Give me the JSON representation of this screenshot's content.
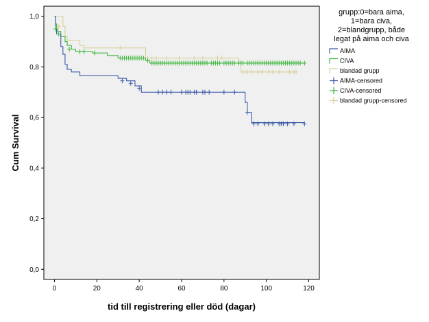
{
  "chart_data": {
    "type": "line",
    "subtype": "kaplan-meier",
    "xlabel": "tid till registrering eller död (dagar)",
    "ylabel": "Cum Survival",
    "xlim": [
      -5,
      125
    ],
    "ylim": [
      -0.04,
      1.04
    ],
    "xticks": [
      0,
      20,
      40,
      60,
      80,
      100,
      120
    ],
    "xtick_labels": [
      "0",
      "20",
      "40",
      "60",
      "80",
      "100",
      "120"
    ],
    "yticks": [
      0.0,
      0.2,
      0.4,
      0.6,
      0.8,
      1.0
    ],
    "ytick_labels": [
      "0,0",
      "0,2",
      "0,4",
      "0,6",
      "0,8",
      "1,0"
    ],
    "grid": false,
    "background": "#f0f0f0",
    "legend_position": "right",
    "legend_title": [
      "grupp:0=bara aima,",
      "1=bara civa,",
      "2=blandgrupp, både",
      "legat på aima och civa"
    ],
    "legend": [
      {
        "label": "AIMA",
        "kind": "line",
        "color": "#3a5aa6"
      },
      {
        "label": "CIVA",
        "kind": "line",
        "color": "#3db53d"
      },
      {
        "label": "blandad grupp",
        "kind": "line",
        "color": "#d8cf9a"
      },
      {
        "label": "AIMA-censored",
        "kind": "plus",
        "color": "#3a5aa6"
      },
      {
        "label": "CIVA-censored",
        "kind": "plus",
        "color": "#3db53d"
      },
      {
        "label": "blandad grupp-censored",
        "kind": "plus",
        "color": "#d8cf9a"
      }
    ],
    "series": [
      {
        "name": "AIMA",
        "color": "#3a5aa6",
        "steps": [
          [
            0,
            1.0
          ],
          [
            0.5,
            0.95
          ],
          [
            1,
            0.93
          ],
          [
            3,
            0.88
          ],
          [
            4,
            0.85
          ],
          [
            5,
            0.81
          ],
          [
            6,
            0.79
          ],
          [
            8,
            0.78
          ],
          [
            12,
            0.765
          ],
          [
            30,
            0.755
          ],
          [
            34,
            0.745
          ],
          [
            38,
            0.725
          ],
          [
            41,
            0.7
          ],
          [
            88,
            0.7
          ],
          [
            90,
            0.66
          ],
          [
            91,
            0.62
          ],
          [
            93,
            0.58
          ],
          [
            118,
            0.58
          ]
        ],
        "censored": [
          [
            32,
            0.745
          ],
          [
            36,
            0.735
          ],
          [
            40,
            0.715
          ],
          [
            49,
            0.7
          ],
          [
            51,
            0.7
          ],
          [
            53,
            0.7
          ],
          [
            55,
            0.7
          ],
          [
            60,
            0.7
          ],
          [
            62,
            0.7
          ],
          [
            63,
            0.7
          ],
          [
            64,
            0.7
          ],
          [
            66,
            0.7
          ],
          [
            67,
            0.7
          ],
          [
            70,
            0.7
          ],
          [
            71,
            0.7
          ],
          [
            73,
            0.7
          ],
          [
            80,
            0.7
          ],
          [
            85,
            0.7
          ],
          [
            91,
            0.62
          ],
          [
            94,
            0.575
          ],
          [
            96,
            0.575
          ],
          [
            99,
            0.575
          ],
          [
            101,
            0.575
          ],
          [
            103,
            0.575
          ],
          [
            106,
            0.575
          ],
          [
            107,
            0.575
          ],
          [
            108,
            0.575
          ],
          [
            110,
            0.575
          ],
          [
            113,
            0.575
          ],
          [
            118,
            0.575
          ]
        ]
      },
      {
        "name": "CIVA",
        "color": "#3db53d",
        "steps": [
          [
            0,
            1.0
          ],
          [
            0.5,
            0.97
          ],
          [
            1,
            0.95
          ],
          [
            1.5,
            0.94
          ],
          [
            3,
            0.92
          ],
          [
            5,
            0.9
          ],
          [
            6,
            0.885
          ],
          [
            8,
            0.87
          ],
          [
            10,
            0.86
          ],
          [
            18,
            0.855
          ],
          [
            25,
            0.845
          ],
          [
            30,
            0.835
          ],
          [
            43,
            0.825
          ],
          [
            45,
            0.815
          ],
          [
            118,
            0.815
          ]
        ],
        "censored": [
          [
            0.5,
            0.95
          ],
          [
            2,
            0.93
          ],
          [
            7,
            0.87
          ],
          [
            12,
            0.86
          ],
          [
            14,
            0.86
          ],
          [
            19,
            0.855
          ],
          [
            31,
            0.835
          ],
          [
            32,
            0.835
          ],
          [
            33,
            0.835
          ],
          [
            34,
            0.835
          ],
          [
            35,
            0.835
          ],
          [
            36,
            0.835
          ],
          [
            37,
            0.835
          ],
          [
            38,
            0.835
          ],
          [
            39,
            0.835
          ],
          [
            40,
            0.835
          ],
          [
            41,
            0.835
          ],
          [
            42,
            0.835
          ],
          [
            44,
            0.825
          ],
          [
            46,
            0.815
          ],
          [
            47,
            0.815
          ],
          [
            48,
            0.815
          ],
          [
            49,
            0.815
          ],
          [
            50,
            0.815
          ],
          [
            51,
            0.815
          ],
          [
            52,
            0.815
          ],
          [
            53,
            0.815
          ],
          [
            54,
            0.815
          ],
          [
            55,
            0.815
          ],
          [
            56,
            0.815
          ],
          [
            57,
            0.815
          ],
          [
            58,
            0.815
          ],
          [
            59,
            0.815
          ],
          [
            60,
            0.815
          ],
          [
            61,
            0.815
          ],
          [
            62,
            0.815
          ],
          [
            63,
            0.815
          ],
          [
            64,
            0.815
          ],
          [
            65,
            0.815
          ],
          [
            66,
            0.815
          ],
          [
            67,
            0.815
          ],
          [
            68,
            0.815
          ],
          [
            69,
            0.815
          ],
          [
            70,
            0.815
          ],
          [
            71,
            0.815
          ],
          [
            72,
            0.815
          ],
          [
            74,
            0.815
          ],
          [
            75,
            0.815
          ],
          [
            76,
            0.815
          ],
          [
            77,
            0.815
          ],
          [
            78,
            0.815
          ],
          [
            80,
            0.815
          ],
          [
            81,
            0.815
          ],
          [
            82,
            0.815
          ],
          [
            83,
            0.815
          ],
          [
            84,
            0.815
          ],
          [
            85,
            0.815
          ],
          [
            87,
            0.815
          ],
          [
            88,
            0.815
          ],
          [
            89,
            0.815
          ],
          [
            91,
            0.815
          ],
          [
            92,
            0.815
          ],
          [
            93,
            0.815
          ],
          [
            94,
            0.815
          ],
          [
            95,
            0.815
          ],
          [
            96,
            0.815
          ],
          [
            97,
            0.815
          ],
          [
            98,
            0.815
          ],
          [
            99,
            0.815
          ],
          [
            100,
            0.815
          ],
          [
            101,
            0.815
          ],
          [
            102,
            0.815
          ],
          [
            103,
            0.815
          ],
          [
            104,
            0.815
          ],
          [
            105,
            0.815
          ],
          [
            106,
            0.815
          ],
          [
            107,
            0.815
          ],
          [
            108,
            0.815
          ],
          [
            109,
            0.815
          ],
          [
            110,
            0.815
          ],
          [
            111,
            0.815
          ],
          [
            112,
            0.815
          ],
          [
            113,
            0.815
          ],
          [
            114,
            0.815
          ],
          [
            115,
            0.815
          ],
          [
            116,
            0.815
          ],
          [
            118,
            0.815
          ]
        ]
      },
      {
        "name": "blandad grupp",
        "color": "#d8cf9a",
        "steps": [
          [
            0,
            1.0
          ],
          [
            4,
            0.96
          ],
          [
            5,
            0.92
          ],
          [
            6,
            0.905
          ],
          [
            12,
            0.885
          ],
          [
            14,
            0.875
          ],
          [
            43,
            0.835
          ],
          [
            87,
            0.82
          ],
          [
            88,
            0.78
          ],
          [
            114,
            0.78
          ]
        ],
        "censored": [
          [
            2,
            0.96
          ],
          [
            31,
            0.875
          ],
          [
            44,
            0.835
          ],
          [
            46,
            0.835
          ],
          [
            48,
            0.835
          ],
          [
            53,
            0.835
          ],
          [
            59,
            0.835
          ],
          [
            66,
            0.835
          ],
          [
            70,
            0.835
          ],
          [
            77,
            0.835
          ],
          [
            79,
            0.835
          ],
          [
            89,
            0.78
          ],
          [
            91,
            0.78
          ],
          [
            93,
            0.78
          ],
          [
            96,
            0.78
          ],
          [
            98,
            0.78
          ],
          [
            101,
            0.78
          ],
          [
            103,
            0.78
          ],
          [
            106,
            0.78
          ],
          [
            111,
            0.78
          ],
          [
            113,
            0.78
          ],
          [
            114,
            0.78
          ]
        ]
      }
    ]
  }
}
